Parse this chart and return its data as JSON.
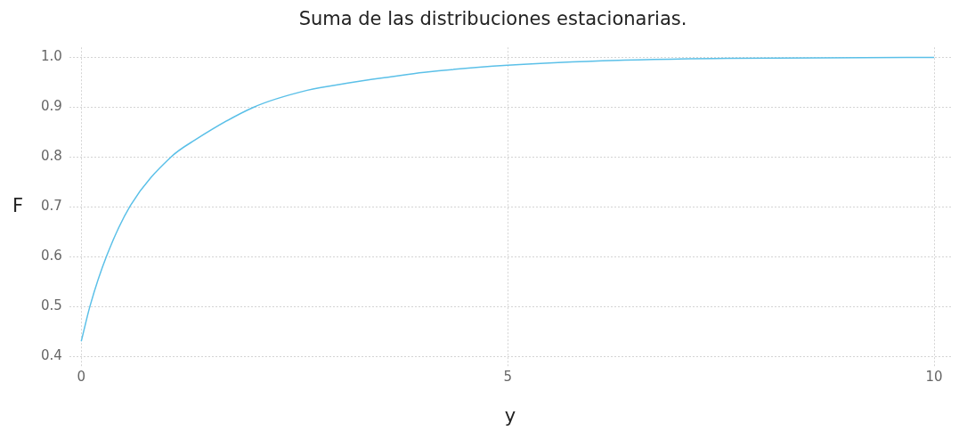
{
  "chart_data": {
    "type": "line",
    "title": "Suma de las distribuciones estacionarias.",
    "xlabel": "y",
    "ylabel": "F",
    "x": [
      0,
      0.105,
      0.3,
      0.576,
      1.05,
      1.33,
      2.02,
      2.65,
      3.11,
      3.63,
      4.02,
      5,
      6.3,
      7.6,
      10
    ],
    "series": [
      {
        "color": "#5bc0e8",
        "values": [
          0.431,
          0.503,
          0.603,
          0.703,
          0.8,
          0.834,
          0.9,
          0.934,
          0.948,
          0.961,
          0.97,
          0.984,
          0.994,
          0.998,
          1.0
        ]
      }
    ],
    "xlim": [
      -0.14,
      10.2
    ],
    "ylim": [
      0.38,
      1.02
    ],
    "xticks": [
      0,
      5,
      10
    ],
    "yticks": [
      0.4,
      0.5,
      0.6,
      0.7,
      0.8,
      0.9,
      {
        "value": 1,
        "label": "1.0"
      }
    ],
    "grid": true,
    "legend": false,
    "marker": "none",
    "line_style": "solid"
  }
}
